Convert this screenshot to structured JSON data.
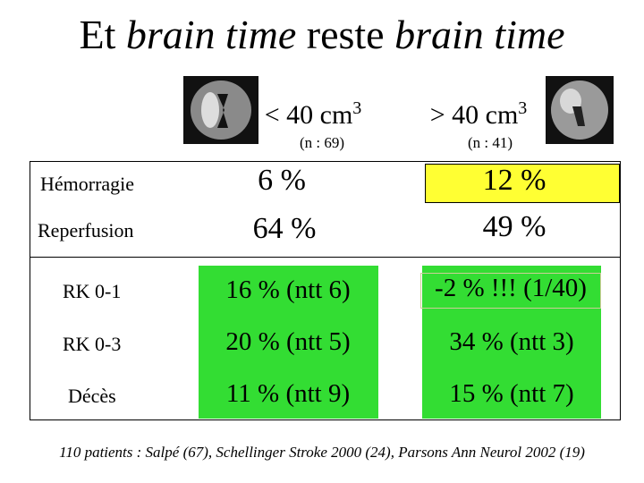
{
  "title": {
    "parts": [
      "Et ",
      "brain time",
      " reste ",
      "brain time"
    ]
  },
  "columns": [
    {
      "label": "< 40 cm",
      "sup": "3",
      "sub": "(n : 69)"
    },
    {
      "label": "> 40 cm",
      "sup": "3",
      "sub": "(n : 41)"
    }
  ],
  "table": {
    "rows": [
      [
        "Hémorragie",
        "6 %",
        "12 %"
      ],
      [
        "Reperfusion",
        "64 %",
        "49 %"
      ],
      [
        "RK 0-1",
        "16 % (ntt 6)",
        "-2 % !!! (1/40)"
      ],
      [
        "RK 0-3",
        "20 % (ntt 5)",
        "34 % (ntt 3)"
      ],
      [
        "Décès",
        "11 % (ntt 9)",
        "15 % (ntt 7)"
      ]
    ]
  },
  "footer": "110 patients : Salpé (67), Schellinger Stroke 2000 (24), Parsons Ann Neurol 2002 (19)"
}
